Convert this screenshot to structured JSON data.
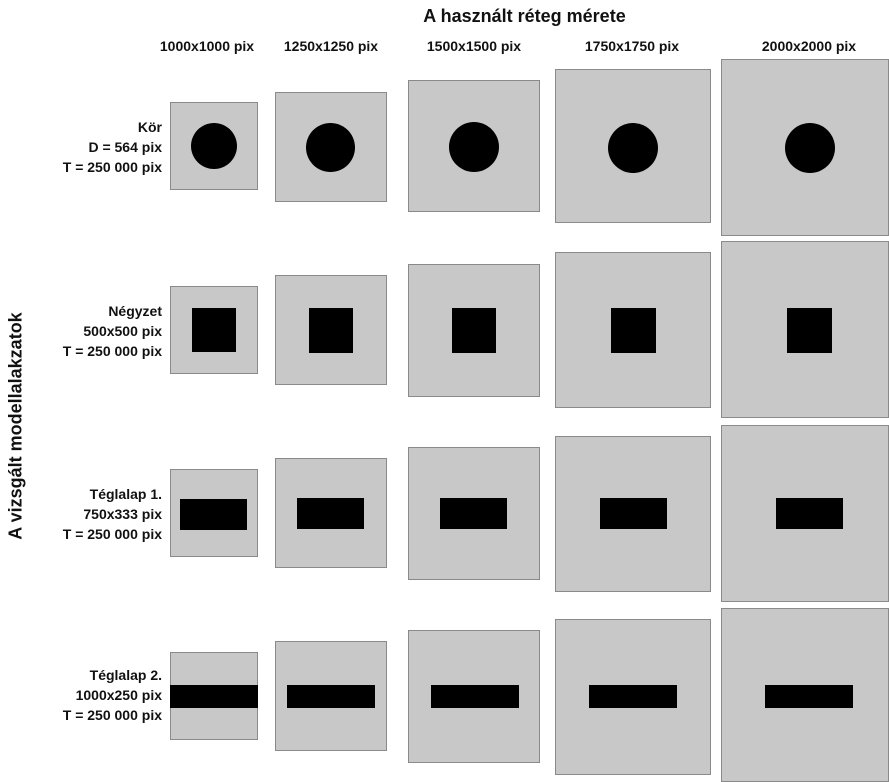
{
  "title": "A használt réteg mérete",
  "side_title": "A vizsgált modellalakzatok",
  "columns": [
    {
      "label": "1000x1000 pix"
    },
    {
      "label": "1250x1250 pix"
    },
    {
      "label": "1500x1500 pix"
    },
    {
      "label": "1750x1750 pix"
    },
    {
      "label": "2000x2000 pix"
    }
  ],
  "rows": [
    {
      "shape": "circle",
      "line1": "Kör",
      "line2": "D = 564 pix",
      "line3": "T = 250 000 pix"
    },
    {
      "shape": "square",
      "line1": "Négyzet",
      "line2": "500x500 pix",
      "line3": "T = 250 000 pix"
    },
    {
      "shape": "rectangle",
      "line1": "Téglalap 1.",
      "line2": "750x333 pix",
      "line3": "T = 250 000 pix"
    },
    {
      "shape": "rectangle",
      "line1": "Téglalap 2.",
      "line2": "1000x250 pix",
      "line3": "T = 250 000 pix"
    }
  ],
  "colors": {
    "layer": "#c8c8c8",
    "shape": "#000000"
  }
}
